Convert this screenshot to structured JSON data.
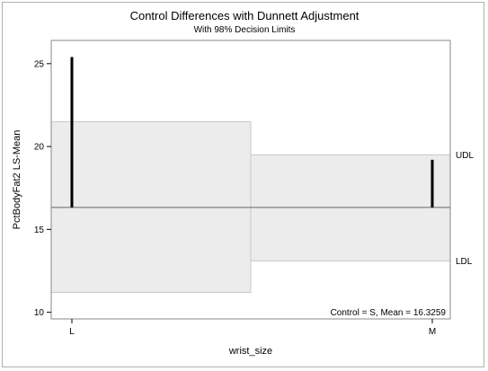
{
  "chart_data": {
    "type": "control-differences",
    "title": "Control Differences with Dunnett Adjustment",
    "subtitle": "With 98% Decision Limits",
    "xlabel": "wrist_size",
    "ylabel": "PctBodyFat2 LS-Mean",
    "categories": [
      "L",
      "M"
    ],
    "ylim": [
      9.6,
      26.4
    ],
    "yticks": [
      10,
      15,
      20,
      25
    ],
    "control_mean": 16.3259,
    "values": [
      25.4,
      19.2
    ],
    "udl": [
      21.5,
      19.5
    ],
    "ldl": [
      11.2,
      13.1
    ],
    "limit_labels": {
      "upper": "UDL",
      "lower": "LDL"
    },
    "annotation": "Control = S, Mean = 16.3259",
    "colors": {
      "band": "#ececec",
      "band_edge": "#c8c8c8",
      "bar": "#000000",
      "control_line": "#909090"
    }
  }
}
